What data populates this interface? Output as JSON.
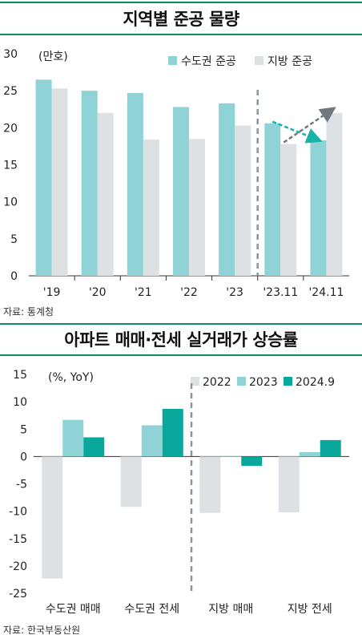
{
  "chart_data": [
    {
      "type": "bar",
      "title": "지역별 준공 물량",
      "unit": "(만호)",
      "categories": [
        "'19",
        "'20",
        "'21",
        "'22",
        "'23",
        "'23.11",
        "'24.11"
      ],
      "series": [
        {
          "name": "수도권 준공",
          "color": "#8fd3d6",
          "values": [
            26.5,
            25.0,
            24.7,
            22.8,
            23.3,
            20.6,
            18.3
          ]
        },
        {
          "name": "지방 준공",
          "color": "#dde1e3",
          "values": [
            25.3,
            22.0,
            18.4,
            18.5,
            20.3,
            17.8,
            22.0
          ]
        }
      ],
      "ylim": [
        0,
        30
      ],
      "yticks": [
        "0",
        "5",
        "10",
        "15",
        "20",
        "25",
        "30"
      ],
      "legend_position": "top-right",
      "source": "자료: 통계청"
    },
    {
      "type": "bar",
      "title": "아파트 매매·전세 실거래가 상승률",
      "unit": "(%, YoY)",
      "categories": [
        "수도권 매매",
        "수도권 전세",
        "지방 매매",
        "지방 전세"
      ],
      "series": [
        {
          "name": "2022",
          "color": "#dde1e3",
          "values": [
            -22.3,
            -9.2,
            -10.3,
            -10.2
          ]
        },
        {
          "name": "2023",
          "color": "#8fd3d6",
          "values": [
            6.7,
            5.7,
            0.1,
            0.8
          ]
        },
        {
          "name": "2024.9",
          "color": "#0aa89c",
          "values": [
            3.5,
            8.7,
            -1.7,
            3.0
          ]
        }
      ],
      "ylim": [
        -25,
        15
      ],
      "yticks": [
        "15",
        "10",
        "5",
        "0",
        "-5",
        "-10",
        "-15",
        "-20",
        "-25"
      ],
      "legend_position": "top-right",
      "source": "자료: 한국부동산원"
    }
  ]
}
